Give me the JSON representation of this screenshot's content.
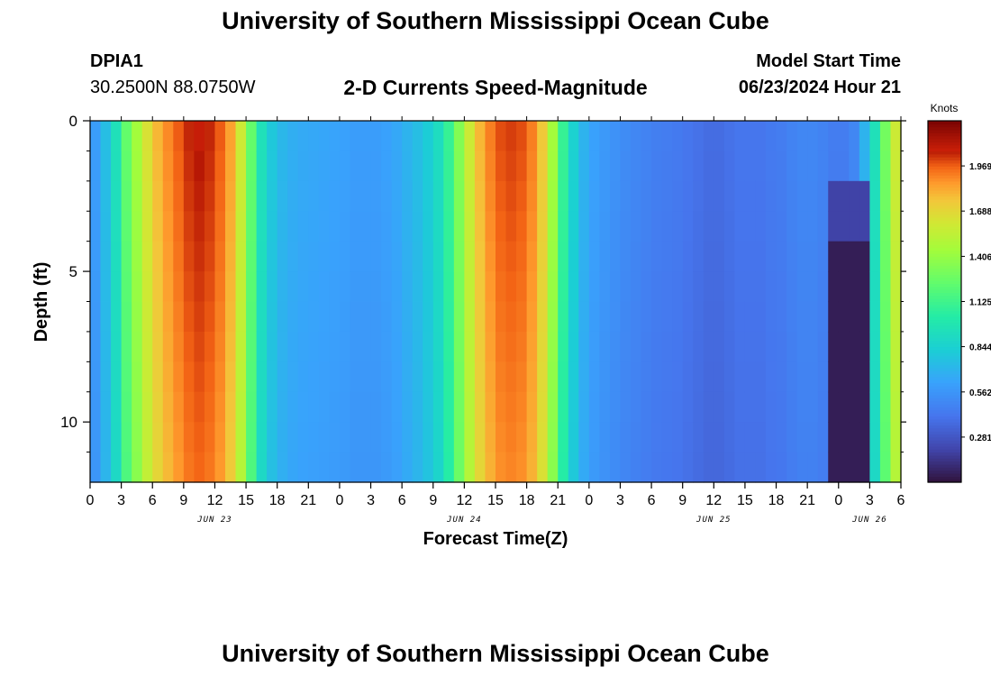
{
  "header": {
    "title": "University of Southern Mississippi Ocean Cube",
    "station_id": "DPIA1",
    "station_coords": "30.2500N  88.0750W",
    "plot_title": "2-D Currents Speed-Magnitude",
    "model_start_label": "Model Start Time",
    "model_start_value": "06/23/2024 Hour 21"
  },
  "footer": {
    "title": "University of Southern Mississippi Ocean Cube"
  },
  "chart_data": {
    "type": "heatmap",
    "title": "2-D Currents Speed-Magnitude",
    "xlabel": "Forecast Time(Z)",
    "ylabel": "Depth (ft)",
    "colorbar_label": "Knots",
    "y_axis": {
      "range": [
        0,
        12
      ],
      "inverted": true,
      "tick_labels": [
        "0",
        "5",
        "10"
      ],
      "tick_values": [
        0,
        5,
        10
      ],
      "minor_tick_values": [
        1,
        2,
        3,
        4,
        6,
        7,
        8,
        9,
        11
      ]
    },
    "x_axis": {
      "range_hours_from_jun23_00z": [
        0,
        78
      ],
      "tick_labels": [
        "0",
        "3",
        "6",
        "9",
        "12",
        "15",
        "18",
        "21",
        "0",
        "3",
        "6",
        "9",
        "12",
        "15",
        "18",
        "21",
        "0",
        "3",
        "6",
        "9",
        "12",
        "15",
        "18",
        "21",
        "0",
        "3",
        "6"
      ],
      "date_labels": [
        {
          "label": "JUN 23",
          "hour": 12
        },
        {
          "label": "JUN 24",
          "hour": 36
        },
        {
          "label": "JUN 25",
          "hour": 60
        },
        {
          "label": "JUN 26",
          "hour": 75
        }
      ]
    },
    "colorbar": {
      "min": 0,
      "max": 2.25,
      "tick_labels": [
        "0.281",
        "0.562",
        "0.844",
        "1.125",
        "1.406",
        "1.688",
        "1.969"
      ],
      "tick_values": [
        0.281,
        0.562,
        0.844,
        1.125,
        1.406,
        1.688,
        1.969
      ],
      "colormap": "turbo"
    },
    "depth_levels_ft": [
      0.5,
      1.5,
      2.5,
      3.5,
      4.5,
      5.5,
      6.5,
      7.5,
      8.5,
      9.5,
      10.5,
      11.5
    ],
    "hours": [
      0,
      1,
      2,
      3,
      4,
      5,
      6,
      7,
      8,
      9,
      10,
      11,
      12,
      13,
      14,
      15,
      16,
      17,
      18,
      19,
      20,
      21,
      22,
      23,
      24,
      25,
      26,
      27,
      28,
      29,
      30,
      31,
      32,
      33,
      34,
      35,
      36,
      37,
      38,
      39,
      40,
      41,
      42,
      43,
      44,
      45,
      46,
      47,
      48,
      49,
      50,
      51,
      52,
      53,
      54,
      55,
      56,
      57,
      58,
      59,
      60,
      61,
      62,
      63,
      64,
      65,
      66,
      67,
      68,
      69,
      70,
      71,
      72,
      73,
      74,
      75,
      76,
      77
    ],
    "speed_profile_knots": [
      0.6,
      0.75,
      0.95,
      1.25,
      1.45,
      1.65,
      1.8,
      1.9,
      1.98,
      2.05,
      2.08,
      2.05,
      1.98,
      1.85,
      1.6,
      1.25,
      0.95,
      0.8,
      0.72,
      0.68,
      0.66,
      0.65,
      0.64,
      0.63,
      0.62,
      0.6,
      0.6,
      0.6,
      0.62,
      0.65,
      0.7,
      0.75,
      0.82,
      0.92,
      1.1,
      1.35,
      1.6,
      1.8,
      1.92,
      2.0,
      2.02,
      2.0,
      1.92,
      1.75,
      1.45,
      1.1,
      0.85,
      0.7,
      0.62,
      0.58,
      0.55,
      0.52,
      0.5,
      0.48,
      0.46,
      0.45,
      0.44,
      0.42,
      0.4,
      0.38,
      0.38,
      0.4,
      0.42,
      0.42,
      0.42,
      0.44,
      0.45,
      0.48,
      0.5,
      0.5,
      0.48,
      0.45,
      0.45,
      0.5,
      0.7,
      0.95,
      1.3,
      1.6
    ],
    "low_pocket": {
      "hours": [
        71,
        72,
        73,
        74
      ],
      "depth_from_ft": 4.5,
      "min_knots": 0.05
    }
  }
}
